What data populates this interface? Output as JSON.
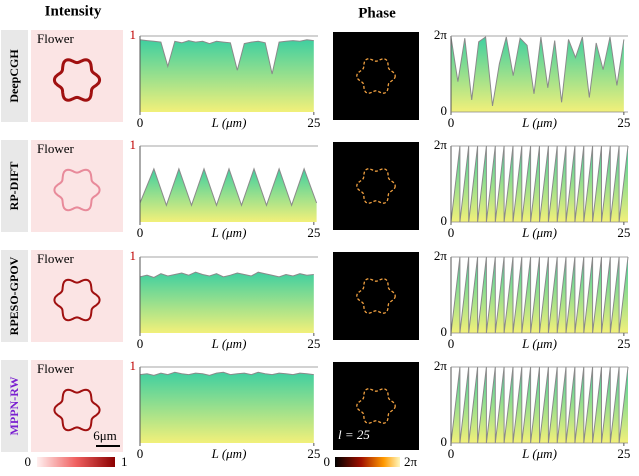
{
  "column_titles": [
    "Intensity",
    "Phase"
  ],
  "rows": [
    {
      "method": "DeepCGH",
      "pattern": "Flower"
    },
    {
      "method": "RP-DIFT",
      "pattern": "Flower"
    },
    {
      "method": "RPESO-GPOV",
      "pattern": "Flower"
    },
    {
      "method": "MPPN-RW",
      "pattern": "Flower"
    }
  ],
  "scale_bar": "6μm",
  "topological_charge": "l = 25",
  "intensity_colorbar": [
    "0",
    "1"
  ],
  "phase_colorbar": [
    "0",
    "2π"
  ],
  "chart_data": [
    {
      "type": "area",
      "xlabel": "L (μm)",
      "color": "#8a8a8a",
      "tick_color": "#c00000",
      "xlim": [
        0,
        25.6
      ],
      "ylim": [
        0,
        1
      ],
      "xticks": [
        0,
        25
      ],
      "yticks": [
        1
      ],
      "x": [
        0,
        1,
        2,
        3,
        4,
        5,
        6,
        7,
        8,
        9,
        10,
        11,
        12,
        13,
        14,
        15,
        16,
        17,
        18,
        19,
        20,
        21,
        22,
        23,
        24,
        25
      ],
      "values": [
        0.95,
        0.94,
        0.93,
        0.92,
        0.6,
        0.93,
        0.91,
        0.94,
        0.92,
        0.93,
        0.9,
        0.93,
        0.92,
        0.91,
        0.55,
        0.9,
        0.92,
        0.93,
        0.91,
        0.5,
        0.92,
        0.93,
        0.94,
        0.93,
        0.95,
        0.94
      ]
    },
    {
      "type": "area",
      "xlabel": "L (μm)",
      "color": "#8a8a8a",
      "tick_color": "#000000",
      "xlim": [
        0,
        25.6
      ],
      "ylim": [
        0,
        6.28
      ],
      "xticks": [
        0,
        25
      ],
      "yticks": [
        0,
        {
          "value": 6.28,
          "label": "2π"
        }
      ],
      "x": [
        0,
        1,
        2,
        3,
        4,
        5,
        6,
        7,
        8,
        9,
        10,
        11,
        12,
        13,
        14,
        15,
        16,
        17,
        18,
        19,
        20,
        21,
        22,
        23,
        24,
        25
      ],
      "values": [
        6.2,
        2.5,
        6.1,
        1.0,
        5.8,
        6.2,
        0.5,
        4.0,
        6.2,
        3.0,
        6.1,
        5.5,
        1.5,
        6.2,
        2.0,
        5.9,
        0.8,
        6.0,
        4.5,
        6.2,
        1.2,
        5.7,
        3.5,
        6.2,
        2.2,
        6.0
      ]
    },
    {
      "type": "area",
      "xlabel": "L (μm)",
      "color": "#8a8a8a",
      "tick_color": "#c00000",
      "xlim": [
        0,
        25.6
      ],
      "ylim": [
        0,
        1
      ],
      "xticks": [
        0,
        25
      ],
      "yticks": [
        1
      ],
      "x": [
        0,
        2,
        3.8,
        5.6,
        7.4,
        9.2,
        11,
        12.8,
        14.6,
        16.4,
        18.2,
        20,
        21.8,
        23.6,
        25.4
      ],
      "values": [
        0.25,
        0.7,
        0.22,
        0.7,
        0.22,
        0.7,
        0.22,
        0.7,
        0.22,
        0.7,
        0.22,
        0.7,
        0.22,
        0.7,
        0.25
      ]
    },
    {
      "type": "area",
      "xlabel": "L (μm)",
      "color": "#8a8a8a",
      "tick_color": "#000000",
      "xlim": [
        0,
        25.6
      ],
      "ylim": [
        0,
        6.28
      ],
      "xticks": [
        0,
        25
      ],
      "yticks": [
        0,
        {
          "value": 6.28,
          "label": "2π"
        }
      ],
      "x": [
        0,
        1.28,
        1.28,
        2.56,
        2.56,
        3.84,
        3.84,
        5.12,
        5.12,
        6.4,
        6.4,
        7.68,
        7.68,
        8.96,
        8.96,
        10.24,
        10.24,
        11.52,
        11.52,
        12.8,
        12.8,
        14.08,
        14.08,
        15.36,
        15.36,
        16.64,
        16.64,
        17.92,
        17.92,
        19.2,
        19.2,
        20.48,
        20.48,
        21.76,
        21.76,
        23.04,
        23.04,
        24.32,
        24.32,
        25.6
      ],
      "values": [
        0,
        6.28,
        0,
        6.28,
        0,
        6.28,
        0,
        6.28,
        0,
        6.28,
        0,
        6.28,
        0,
        6.28,
        0,
        6.28,
        0,
        6.28,
        0,
        6.28,
        0,
        6.28,
        0,
        6.28,
        0,
        6.28,
        0,
        6.28,
        0,
        6.28,
        0,
        6.28,
        0,
        6.28,
        0,
        6.28,
        0,
        6.28,
        0,
        6.28
      ]
    },
    {
      "type": "area",
      "xlabel": "L (μm)",
      "color": "#8a8a8a",
      "tick_color": "#c00000",
      "xlim": [
        0,
        25.6
      ],
      "ylim": [
        0,
        1
      ],
      "xticks": [
        0,
        25
      ],
      "yticks": [
        1
      ],
      "x": [
        0,
        1,
        2,
        3,
        4,
        5,
        6,
        7,
        8,
        9,
        10,
        11,
        12,
        13,
        14,
        15,
        16,
        17,
        18,
        19,
        20,
        21,
        22,
        23,
        24,
        25
      ],
      "values": [
        0.74,
        0.76,
        0.73,
        0.78,
        0.75,
        0.77,
        0.79,
        0.76,
        0.8,
        0.77,
        0.75,
        0.78,
        0.74,
        0.76,
        0.79,
        0.77,
        0.75,
        0.8,
        0.78,
        0.76,
        0.74,
        0.77,
        0.75,
        0.78,
        0.76,
        0.77
      ]
    },
    {
      "type": "area",
      "xlabel": "L (μm)",
      "color": "#8a8a8a",
      "tick_color": "#000000",
      "xlim": [
        0,
        25.6
      ],
      "ylim": [
        0,
        6.28
      ],
      "xticks": [
        0,
        25
      ],
      "yticks": [
        0,
        {
          "value": 6.28,
          "label": "2π"
        }
      ],
      "x": [
        0,
        1.28,
        1.28,
        2.56,
        2.56,
        3.84,
        3.84,
        5.12,
        5.12,
        6.4,
        6.4,
        7.68,
        7.68,
        8.96,
        8.96,
        10.24,
        10.24,
        11.52,
        11.52,
        12.8,
        12.8,
        14.08,
        14.08,
        15.36,
        15.36,
        16.64,
        16.64,
        17.92,
        17.92,
        19.2,
        19.2,
        20.48,
        20.48,
        21.76,
        21.76,
        23.04,
        23.04,
        24.32,
        24.32,
        25.6
      ],
      "values": [
        0,
        6.28,
        0,
        6.28,
        0,
        6.28,
        0,
        6.28,
        0,
        6.28,
        0,
        6.28,
        0,
        6.28,
        0,
        6.28,
        0,
        6.28,
        0,
        6.28,
        0,
        6.28,
        0,
        6.28,
        0,
        6.28,
        0,
        6.28,
        0,
        6.28,
        0,
        6.28,
        0,
        6.28,
        0,
        6.28,
        0,
        6.28,
        0,
        6.28
      ]
    },
    {
      "type": "area",
      "xlabel": "L (μm)",
      "color": "#8a8a8a",
      "tick_color": "#c00000",
      "xlim": [
        0,
        25.6
      ],
      "ylim": [
        0,
        1
      ],
      "xticks": [
        0,
        25
      ],
      "yticks": [
        1
      ],
      "x": [
        0,
        1,
        2,
        3,
        4,
        5,
        6,
        7,
        8,
        9,
        10,
        11,
        12,
        13,
        14,
        15,
        16,
        17,
        18,
        19,
        20,
        21,
        22,
        23,
        24,
        25
      ],
      "values": [
        0.9,
        0.91,
        0.89,
        0.92,
        0.9,
        0.93,
        0.91,
        0.9,
        0.92,
        0.91,
        0.89,
        0.92,
        0.93,
        0.9,
        0.91,
        0.92,
        0.9,
        0.93,
        0.91,
        0.9,
        0.92,
        0.91,
        0.9,
        0.92,
        0.91,
        0.9
      ]
    },
    {
      "type": "area",
      "xlabel": "L (μm)",
      "color": "#8a8a8a",
      "tick_color": "#000000",
      "xlim": [
        0,
        25.6
      ],
      "ylim": [
        0,
        6.28
      ],
      "xticks": [
        0,
        25
      ],
      "yticks": [
        0,
        {
          "value": 6.28,
          "label": "2π"
        }
      ],
      "x": [
        0,
        1.28,
        1.28,
        2.56,
        2.56,
        3.84,
        3.84,
        5.12,
        5.12,
        6.4,
        6.4,
        7.68,
        7.68,
        8.96,
        8.96,
        10.24,
        10.24,
        11.52,
        11.52,
        12.8,
        12.8,
        14.08,
        14.08,
        15.36,
        15.36,
        16.64,
        16.64,
        17.92,
        17.92,
        19.2,
        19.2,
        20.48,
        20.48,
        21.76,
        21.76,
        23.04,
        23.04,
        24.32,
        24.32,
        25.6
      ],
      "values": [
        0,
        6.28,
        0,
        6.28,
        0,
        6.28,
        0,
        6.28,
        0,
        6.28,
        0,
        6.28,
        0,
        6.28,
        0,
        6.28,
        0,
        6.28,
        0,
        6.28,
        0,
        6.28,
        0,
        6.28,
        0,
        6.28,
        0,
        6.28,
        0,
        6.28,
        0,
        6.28,
        0,
        6.28,
        0,
        6.28,
        0,
        6.28,
        0,
        6.28
      ]
    }
  ]
}
